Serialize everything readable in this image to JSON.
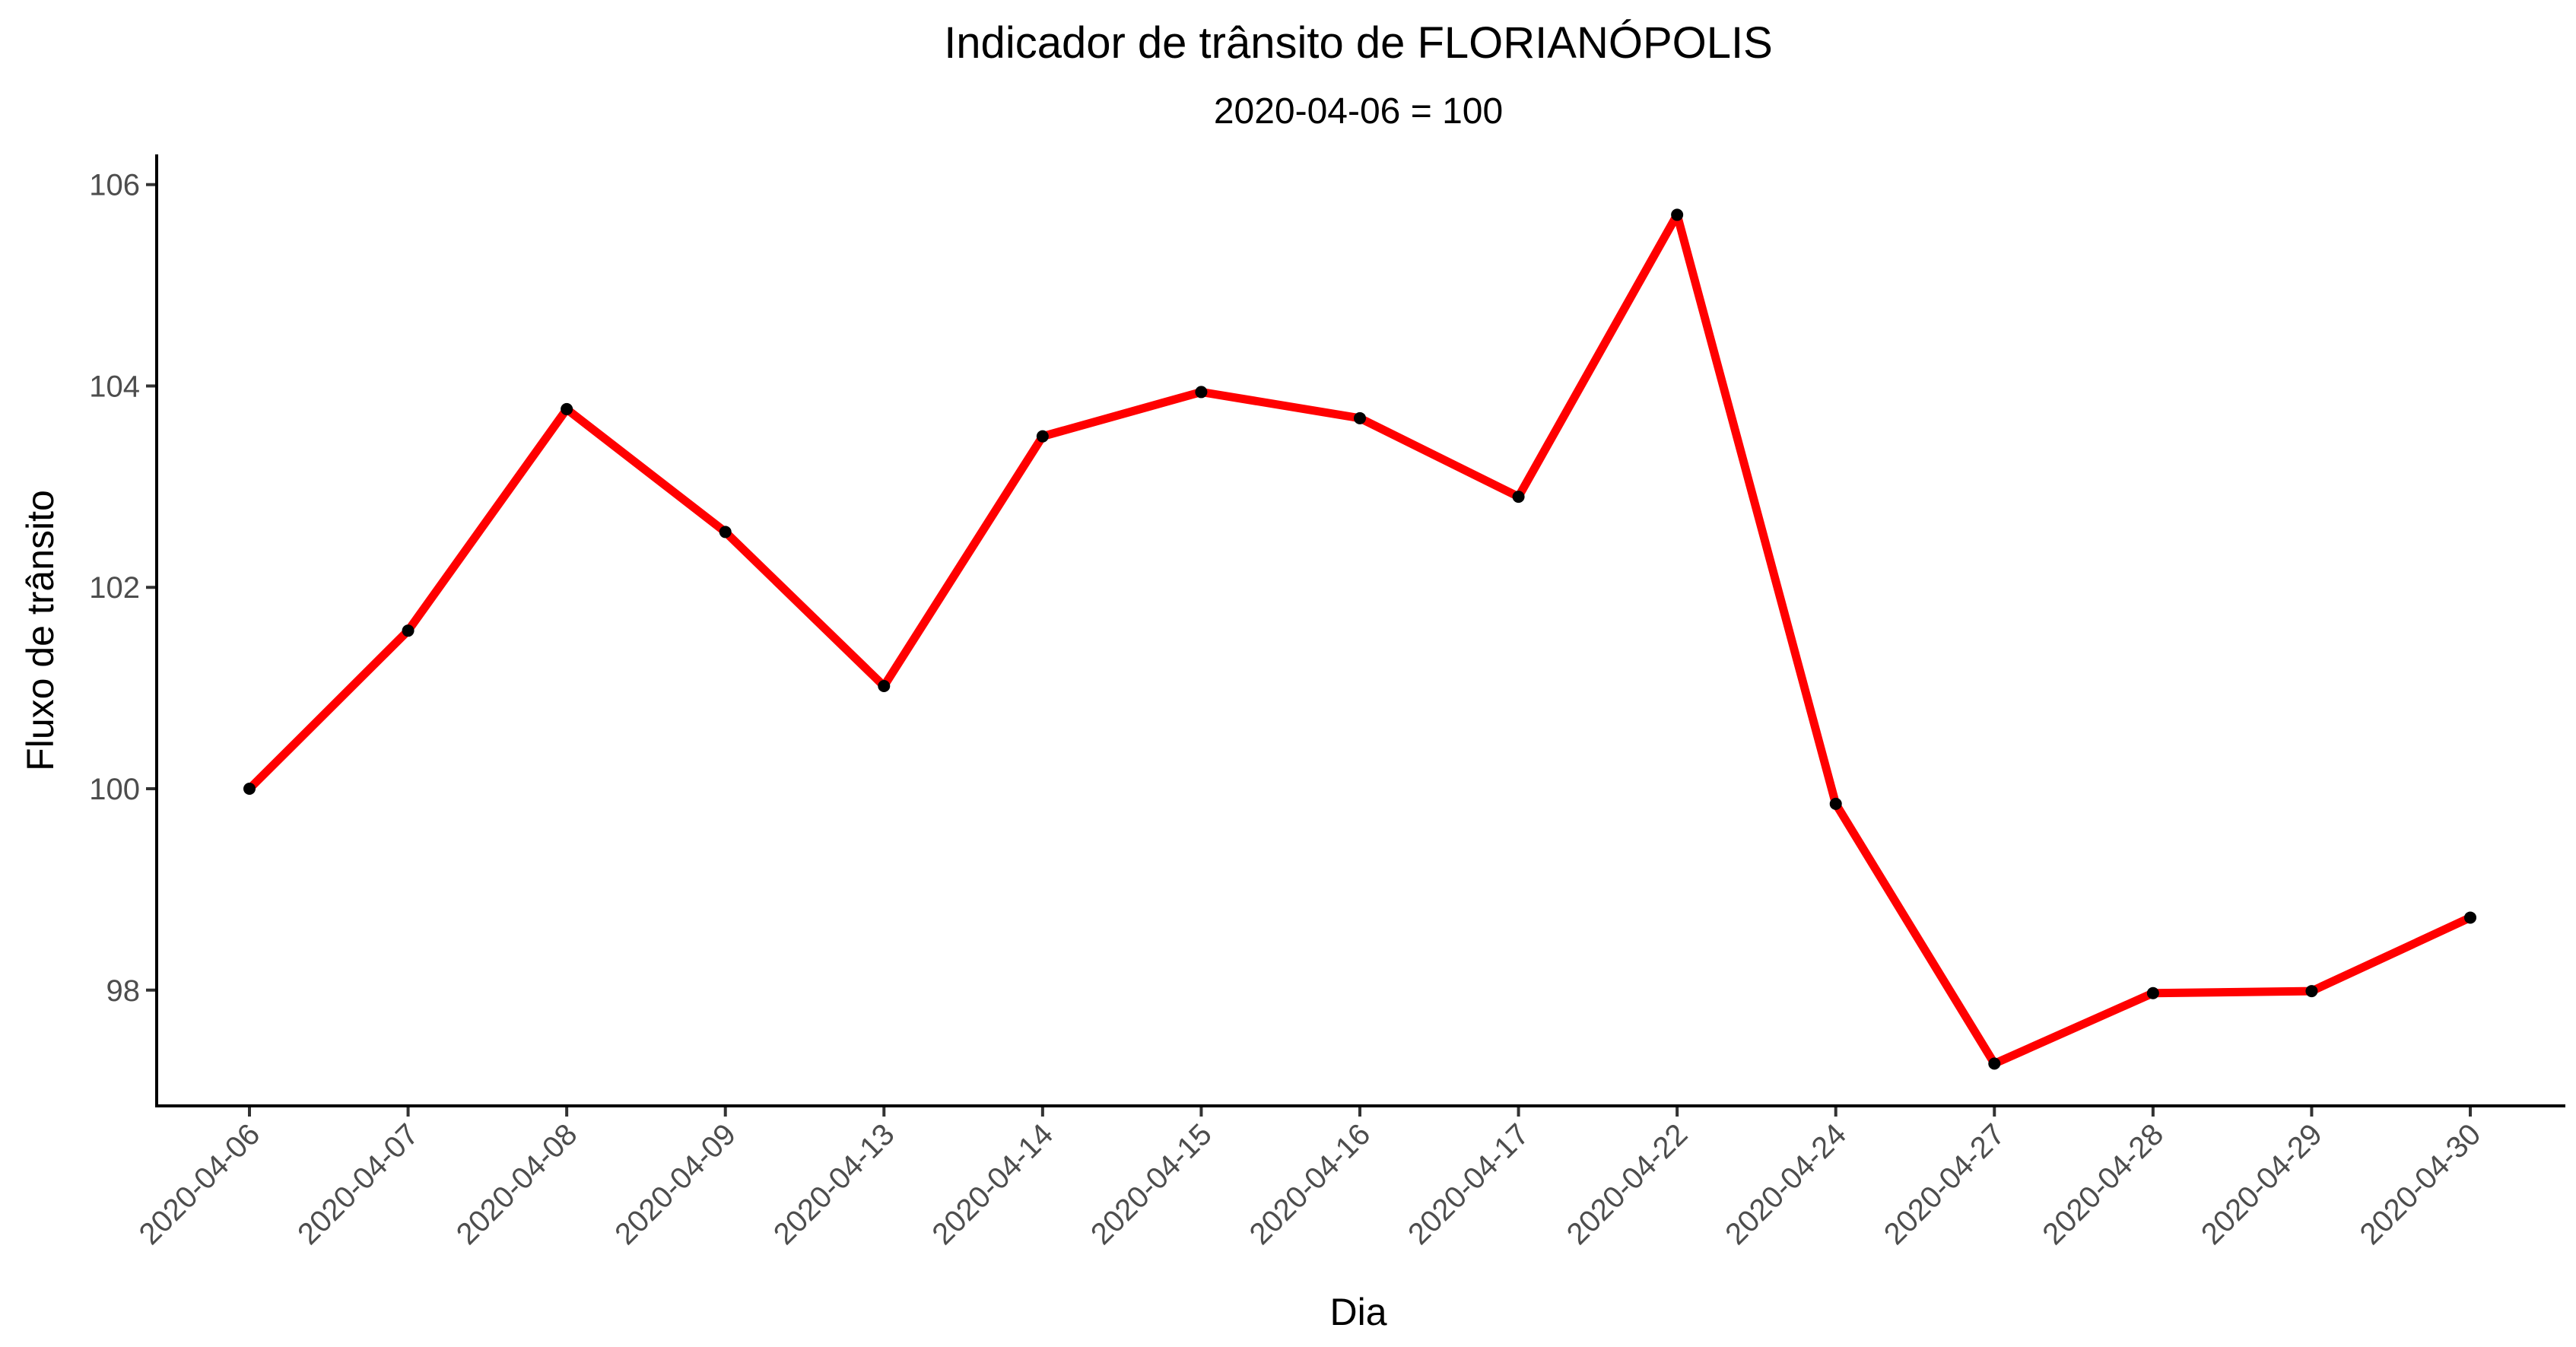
{
  "chart_data": {
    "type": "line",
    "title": "Indicador de trânsito de FLORIANÓPOLIS",
    "subtitle": "2020-04-06 = 100",
    "xlabel": "Dia",
    "ylabel": "Fluxo de trânsito",
    "categories": [
      "2020-04-06",
      "2020-04-07",
      "2020-04-08",
      "2020-04-09",
      "2020-04-13",
      "2020-04-14",
      "2020-04-15",
      "2020-04-16",
      "2020-04-17",
      "2020-04-22",
      "2020-04-24",
      "2020-04-27",
      "2020-04-28",
      "2020-04-29",
      "2020-04-30"
    ],
    "series": [
      {
        "values": [
          100.0,
          101.57,
          103.77,
          102.55,
          101.02,
          103.5,
          103.94,
          103.68,
          102.9,
          105.7,
          99.85,
          97.27,
          97.97,
          97.99,
          98.72
        ],
        "color": "#ff0000",
        "point_color": "#000000"
      }
    ],
    "yticks": [
      98,
      100,
      102,
      104,
      106
    ],
    "ylim": [
      96.85,
      106.3
    ],
    "grid": false,
    "legend": "none",
    "x_tick_rotation": -45
  }
}
